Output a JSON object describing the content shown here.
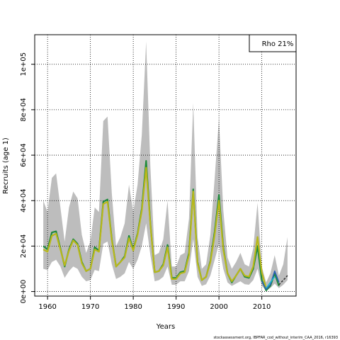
{
  "chart_data": {
    "type": "line",
    "title": "",
    "xlabel": "Years",
    "ylabel": "Recruits (age 1)",
    "xlim": [
      1957,
      2018
    ],
    "ylim": [
      -2000,
      113000
    ],
    "x_ticks": [
      1960,
      1970,
      1980,
      1990,
      2000,
      2010
    ],
    "y_ticks": [
      0,
      20000,
      40000,
      60000,
      80000,
      100000
    ],
    "y_tick_labels": [
      "0e+00",
      "2e+04",
      "4e+04",
      "6e+04",
      "8e+04",
      "1e+05"
    ],
    "grid": true,
    "grid_style": "dotted",
    "legend_position": "top-right",
    "legend_label": "Rho 21%",
    "footnote": "stockassessment.org, IBPFAR_cod_without_interim_CAA_2016, r16393",
    "x": [
      1959,
      1960,
      1961,
      1962,
      1963,
      1964,
      1965,
      1966,
      1967,
      1968,
      1969,
      1970,
      1971,
      1972,
      1973,
      1974,
      1975,
      1976,
      1977,
      1978,
      1979,
      1980,
      1981,
      1982,
      1983,
      1984,
      1985,
      1986,
      1987,
      1988,
      1989,
      1990,
      1991,
      1992,
      1993,
      1994,
      1995,
      1996,
      1997,
      1998,
      1999,
      2000,
      2001,
      2002,
      2003,
      2004,
      2005,
      2006,
      2007,
      2008,
      2009,
      2010,
      2011,
      2012,
      2013,
      2014,
      2015,
      2016
    ],
    "ci_upper": [
      40000,
      35000,
      50000,
      52000,
      37000,
      22000,
      37000,
      44000,
      41000,
      25000,
      17000,
      22000,
      37000,
      35000,
      75000,
      77000,
      43000,
      20000,
      24000,
      30000,
      47000,
      35000,
      47000,
      69000,
      110000,
      55000,
      16000,
      17000,
      23000,
      40000,
      11000,
      11000,
      16000,
      17000,
      32000,
      83000,
      24000,
      10000,
      12000,
      25000,
      50000,
      76000,
      36000,
      15000,
      10000,
      13000,
      17000,
      12000,
      11000,
      19000,
      39000,
      11000,
      4000,
      8000,
      16000,
      7000,
      12000,
      24000
    ],
    "ci_lower": [
      10000,
      9500,
      13000,
      14000,
      11000,
      6000,
      9000,
      11000,
      10000,
      6500,
      4500,
      5000,
      9500,
      9000,
      21000,
      22000,
      12000,
      5500,
      6500,
      8000,
      13000,
      10000,
      14000,
      20000,
      30000,
      16000,
      4500,
      5000,
      6500,
      11000,
      3000,
      3000,
      4500,
      4500,
      9000,
      23000,
      6500,
      2500,
      3200,
      7000,
      14000,
      21000,
      10000,
      4000,
      2500,
      3500,
      4500,
      3200,
      3000,
      5000,
      10000,
      2500,
      500,
      1500,
      3500,
      1500,
      3000,
      5000
    ],
    "series": [
      {
        "name": "",
        "color": "#1f8a3c",
        "values": [
          20000,
          18500,
          26000,
          26500,
          19000,
          11000,
          18500,
          23000,
          21000,
          13000,
          9000,
          10000,
          19500,
          18000,
          39500,
          40500,
          23000,
          11000,
          13000,
          15500,
          24500,
          18500,
          25500,
          36500,
          57500,
          30000,
          8500,
          9000,
          12000,
          20500,
          6000,
          6000,
          8500,
          9000,
          17000,
          45000,
          13000,
          5000,
          6500,
          13500,
          26500,
          42500,
          19500,
          8000,
          4000,
          7000,
          10000,
          6500,
          6000,
          10000,
          20000,
          5000,
          500,
          2500,
          8000,
          2500,
          null,
          null
        ]
      },
      {
        "name": "",
        "color": "#b8b81a",
        "values": [
          18500,
          17500,
          24500,
          25500,
          18500,
          11500,
          18000,
          22500,
          20500,
          12500,
          9000,
          10000,
          18500,
          17500,
          38500,
          39500,
          22500,
          11000,
          13000,
          15000,
          23500,
          18000,
          25000,
          35500,
          54500,
          29500,
          8500,
          9000,
          11500,
          19500,
          5500,
          5500,
          8000,
          8500,
          16000,
          44000,
          12500,
          5000,
          6500,
          13000,
          25000,
          40000,
          18500,
          8000,
          4500,
          7000,
          10000,
          7000,
          6500,
          11000,
          24000,
          8500,
          1500,
          null,
          null,
          null,
          null,
          null
        ]
      },
      {
        "name": "",
        "color": "#2b5fb5",
        "values": [
          null,
          null,
          null,
          null,
          null,
          null,
          null,
          null,
          null,
          null,
          null,
          null,
          null,
          null,
          null,
          null,
          null,
          null,
          null,
          null,
          null,
          null,
          null,
          null,
          null,
          null,
          null,
          null,
          null,
          null,
          null,
          null,
          null,
          null,
          null,
          null,
          null,
          null,
          null,
          null,
          null,
          null,
          null,
          null,
          null,
          null,
          null,
          null,
          null,
          null,
          null,
          4500,
          1000,
          3000,
          9000,
          4000,
          null,
          null
        ]
      },
      {
        "name": "",
        "color": "#17becf",
        "values": [
          null,
          null,
          null,
          null,
          null,
          null,
          null,
          null,
          null,
          null,
          null,
          null,
          null,
          null,
          null,
          null,
          null,
          null,
          null,
          null,
          null,
          null,
          null,
          null,
          null,
          null,
          null,
          null,
          null,
          null,
          null,
          null,
          null,
          null,
          null,
          null,
          null,
          null,
          null,
          null,
          null,
          null,
          null,
          null,
          null,
          null,
          null,
          null,
          null,
          null,
          null,
          null,
          1500,
          4000,
          6500,
          null,
          null,
          null
        ]
      },
      {
        "name": "",
        "color": "#333333",
        "dashed": true,
        "values": [
          null,
          null,
          null,
          null,
          null,
          null,
          null,
          null,
          null,
          null,
          null,
          null,
          null,
          null,
          null,
          null,
          null,
          null,
          null,
          null,
          null,
          null,
          null,
          null,
          null,
          null,
          null,
          null,
          null,
          null,
          null,
          null,
          null,
          null,
          null,
          null,
          null,
          null,
          null,
          null,
          null,
          null,
          null,
          null,
          null,
          null,
          null,
          null,
          null,
          null,
          null,
          null,
          null,
          null,
          null,
          3000,
          5000,
          7000
        ]
      }
    ]
  }
}
